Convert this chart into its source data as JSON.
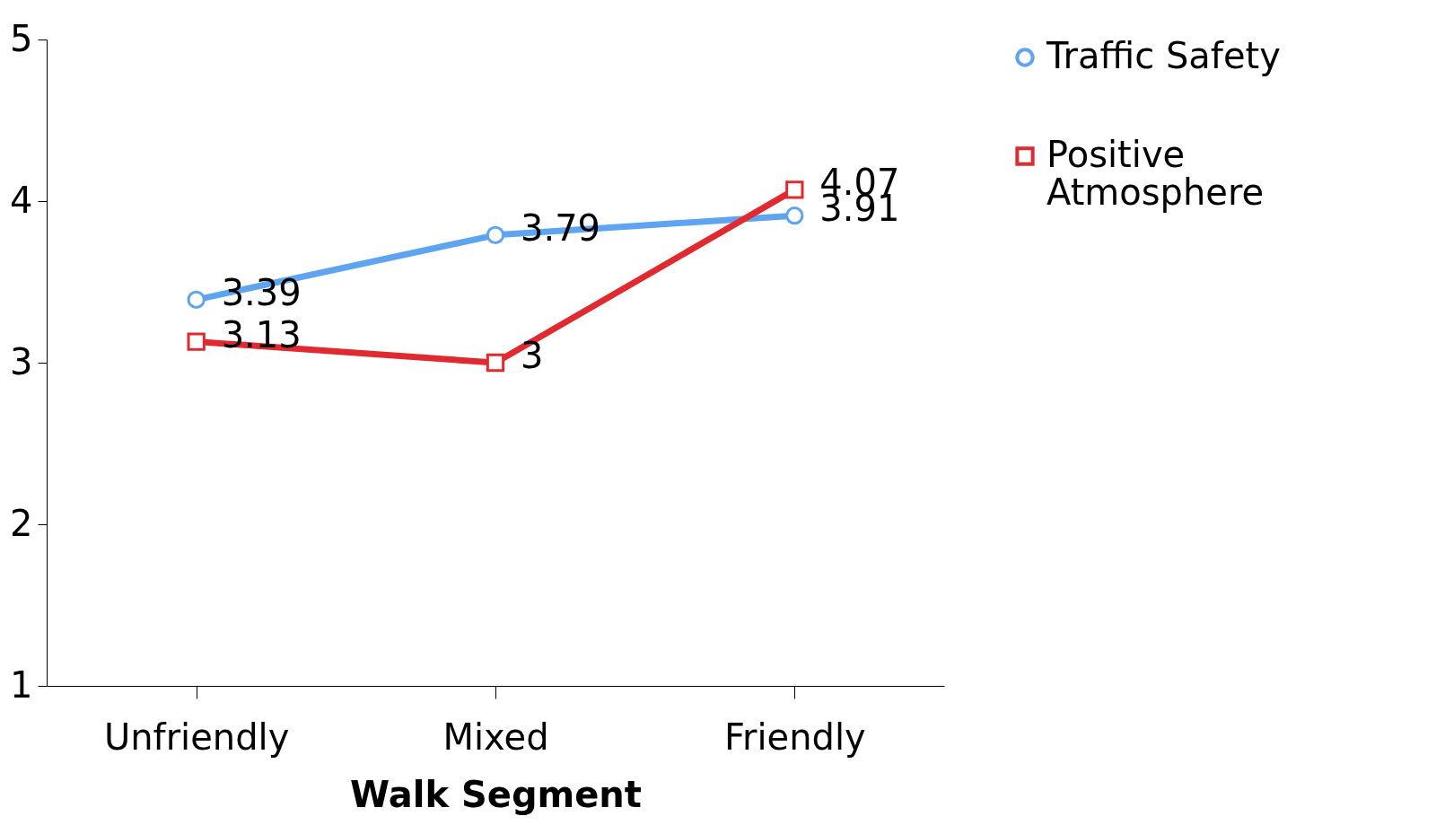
{
  "chart_data": {
    "type": "line",
    "xlabel": "Walk Segment",
    "categories": [
      "Unfriendly",
      "Mixed",
      "Friendly"
    ],
    "series": [
      {
        "name": "Traffic Safety",
        "color": "#5fa4f0",
        "marker": "circle",
        "values": [
          3.39,
          3.79,
          3.91
        ]
      },
      {
        "name": "Positive Atmosphere",
        "color": "#e02a30",
        "marker": "square",
        "values": [
          3.13,
          3,
          4.07
        ]
      }
    ],
    "ylim": [
      1,
      5
    ],
    "yticks": [
      1,
      2,
      3,
      4,
      5
    ],
    "grid": false,
    "legend": "right",
    "data_labels": true
  }
}
